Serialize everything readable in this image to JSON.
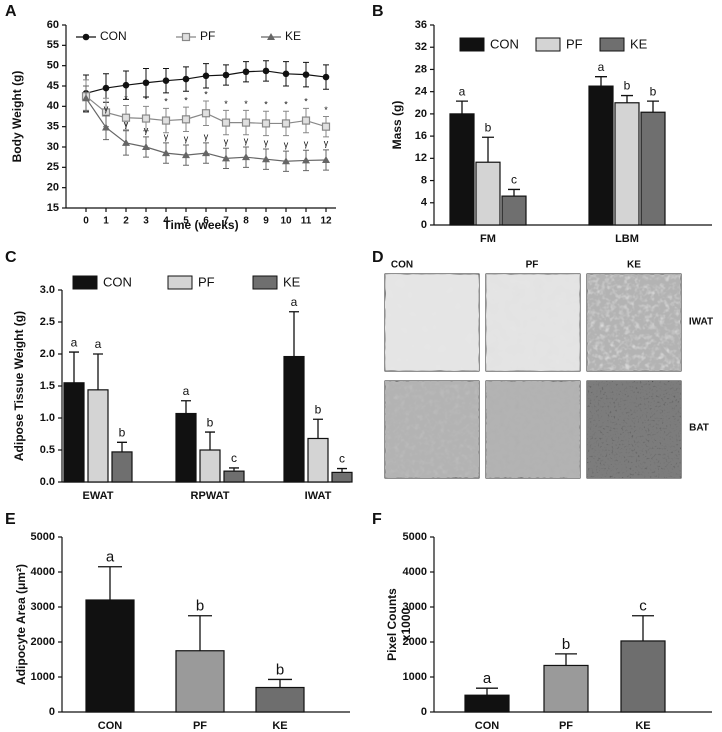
{
  "chart_data": [
    {
      "type": "line",
      "label": "A",
      "ylabel": "Body Weight (g)",
      "xlabel": "Time (weeks)",
      "x": [
        0,
        1,
        2,
        3,
        4,
        5,
        6,
        7,
        8,
        9,
        10,
        11,
        12
      ],
      "xlim": [
        -1,
        12.5
      ],
      "xticks": [
        0,
        1,
        2,
        3,
        4,
        5,
        6,
        7,
        8,
        9,
        10,
        11,
        12
      ],
      "ylim": [
        15,
        60
      ],
      "yticks": [
        15,
        20,
        25,
        30,
        35,
        40,
        45,
        50,
        55,
        60
      ],
      "legend": "top",
      "series": [
        {
          "name": "CON",
          "color": "#111111",
          "marker": "circle",
          "values": [
            43.2,
            44.5,
            45.2,
            45.8,
            46.3,
            46.7,
            47.5,
            47.7,
            48.5,
            48.7,
            48,
            47.8,
            47.2
          ],
          "errors": [
            4.5,
            3.5,
            3.5,
            3.5,
            3,
            3,
            3,
            2.5,
            2.5,
            2.5,
            3,
            3,
            3
          ]
        },
        {
          "name": "PF",
          "color": "#888888",
          "marker": "square",
          "values": [
            42.5,
            38.5,
            37.2,
            37,
            36.5,
            36.8,
            38.3,
            36,
            36,
            35.8,
            35.8,
            36.5,
            35
          ],
          "errors": [
            4,
            3.5,
            3,
            3,
            3,
            3,
            3,
            3,
            3,
            3,
            3,
            3,
            2.5
          ],
          "point_labels": [
            null,
            null,
            "*",
            "*",
            "*",
            "*",
            "*",
            "*",
            "*",
            "*",
            "*",
            "*",
            "*"
          ]
        },
        {
          "name": "KE",
          "color": "#666666",
          "marker": "triangle",
          "values": [
            42,
            34.8,
            31,
            30,
            28.5,
            28,
            28.5,
            27.2,
            27.5,
            27,
            26.5,
            26.7,
            26.8
          ],
          "errors": [
            3,
            3,
            3,
            2.5,
            2.5,
            2.5,
            2.5,
            2.5,
            2.5,
            2.5,
            2.5,
            2.5,
            2.5
          ],
          "point_labels": [
            null,
            "γ",
            "γ",
            "γ",
            "γ",
            "γ",
            "γ",
            "γ",
            "γ",
            "γ",
            "γ",
            "γ",
            "γ"
          ]
        }
      ]
    },
    {
      "type": "bar",
      "label": "B",
      "ylabel": "Mass (g)",
      "categories": [
        "FM",
        "LBM"
      ],
      "ylim": [
        0,
        36
      ],
      "yticks": [
        0,
        4,
        8,
        12,
        16,
        20,
        24,
        28,
        32,
        36
      ],
      "legend": "top",
      "series": [
        {
          "name": "CON",
          "color": "#111111",
          "values": [
            20,
            25
          ],
          "errors": [
            2.3,
            1.7
          ],
          "sig_labels": [
            "a",
            "a"
          ]
        },
        {
          "name": "PF",
          "color": "#d4d4d4",
          "values": [
            11.3,
            22
          ],
          "errors": [
            4.5,
            1.3
          ],
          "sig_labels": [
            "b",
            "b"
          ]
        },
        {
          "name": "KE",
          "color": "#6f6f6f",
          "values": [
            5.2,
            20.3
          ],
          "errors": [
            1.2,
            2
          ],
          "sig_labels": [
            "c",
            "b"
          ]
        }
      ]
    },
    {
      "type": "bar",
      "label": "C",
      "ylabel": "Adipose Tissue Weight (g)",
      "categories": [
        "EWAT",
        "RPWAT",
        "IWAT"
      ],
      "ylim": [
        0,
        3
      ],
      "yticks": [
        {
          "value": 0,
          "label": "0.0"
        },
        0.5,
        {
          "value": 1,
          "label": "1.0"
        },
        1.5,
        {
          "value": 2,
          "label": "2.0"
        },
        2.5,
        {
          "value": 3,
          "label": "3.0"
        }
      ],
      "legend": "top",
      "series": [
        {
          "name": "CON",
          "color": "#111111",
          "values": [
            1.55,
            1.07,
            1.96
          ],
          "errors": [
            0.48,
            0.2,
            0.7
          ],
          "sig_labels": [
            "a",
            "a",
            "a"
          ]
        },
        {
          "name": "PF",
          "color": "#d4d4d4",
          "values": [
            1.44,
            0.5,
            0.68
          ],
          "errors": [
            0.56,
            0.28,
            0.3
          ],
          "sig_labels": [
            "a",
            "b",
            "b"
          ]
        },
        {
          "name": "KE",
          "color": "#6f6f6f",
          "values": [
            0.47,
            0.17,
            0.15
          ],
          "errors": [
            0.15,
            0.05,
            0.06
          ],
          "sig_labels": [
            "b",
            "c",
            "c"
          ]
        }
      ]
    },
    {
      "type": "bar",
      "label": "E",
      "ylabel": "Adipocyte Area (μm²)",
      "categories": [
        "CON",
        "PF",
        "KE"
      ],
      "values": [
        3200,
        1750,
        700
      ],
      "errors": [
        950,
        1000,
        230
      ],
      "colors": [
        "#111111",
        "#9a9a9a",
        "#6e6e6e"
      ],
      "sig_labels": [
        "a",
        "b",
        "b"
      ],
      "ylim": [
        0,
        5000
      ],
      "yticks": [
        0,
        1000,
        2000,
        3000,
        4000,
        5000
      ]
    },
    {
      "type": "bar",
      "label": "F",
      "ylabel": [
        "Pixel Counts",
        "x1000"
      ],
      "categories": [
        "CON",
        "PF",
        "KE"
      ],
      "values": [
        480,
        1330,
        2030
      ],
      "errors": [
        200,
        330,
        720
      ],
      "colors": [
        "#111111",
        "#9a9a9a",
        "#6e6e6e"
      ],
      "sig_labels": [
        "a",
        "b",
        "c"
      ],
      "ylim": [
        0,
        5000
      ],
      "yticks": [
        0,
        1000,
        2000,
        3000,
        4000,
        5000
      ]
    }
  ],
  "image_panel": {
    "label": "D",
    "columns": [
      "CON",
      "PF",
      "KE"
    ],
    "rows": [
      "IWAT",
      "BAT"
    ]
  }
}
